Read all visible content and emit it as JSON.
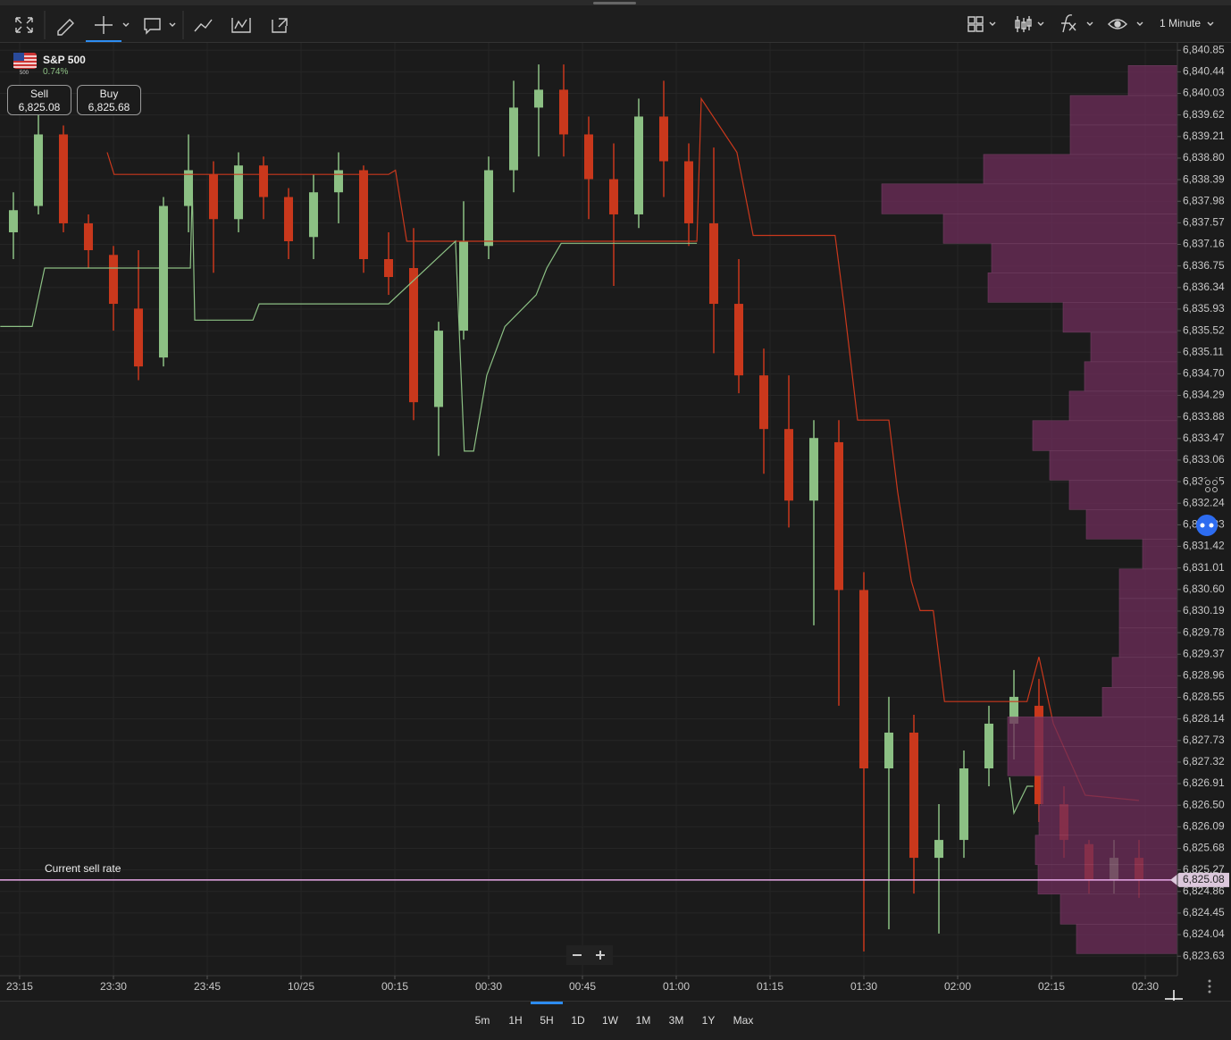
{
  "toolbar": {
    "timeframe": "1 Minute"
  },
  "instrument": {
    "name": "S&P 500",
    "flag_text": "500",
    "change": "0.74%",
    "sell_label": "Sell",
    "sell_price": "6,825.08",
    "buy_label": "Buy",
    "buy_price": "6,825.68"
  },
  "chart_data": {
    "type": "candlestick",
    "up_color": "#8cc084",
    "down_color": "#c9381c",
    "grid": true,
    "xlim": [
      -3.14,
      185.14
    ],
    "ylim": [
      6823.26,
      6840.99
    ],
    "xticks": [
      {
        "value": 0,
        "label": "23:15"
      },
      {
        "value": 15,
        "label": "23:30"
      },
      {
        "value": 30,
        "label": "23:45"
      },
      {
        "value": 45,
        "label": "10/25"
      },
      {
        "value": 60,
        "label": "00:15"
      },
      {
        "value": 75,
        "label": "00:30"
      },
      {
        "value": 90,
        "label": "00:45"
      },
      {
        "value": 105,
        "label": "01:00"
      },
      {
        "value": 120,
        "label": "01:15"
      },
      {
        "value": 135,
        "label": "01:30"
      },
      {
        "value": 150,
        "label": "02:00"
      },
      {
        "value": 165,
        "label": "02:15"
      },
      {
        "value": 180,
        "label": "02:30"
      }
    ],
    "yticks": [
      {
        "value": 6840.85,
        "label": "6,840.85"
      },
      {
        "value": 6840.44,
        "label": "6,840.44"
      },
      {
        "value": 6840.03,
        "label": "6,840.03"
      },
      {
        "value": 6839.62,
        "label": "6,839.62"
      },
      {
        "value": 6839.21,
        "label": "6,839.21"
      },
      {
        "value": 6838.8,
        "label": "6,838.80"
      },
      {
        "value": 6838.39,
        "label": "6,838.39"
      },
      {
        "value": 6837.98,
        "label": "6,837.98"
      },
      {
        "value": 6837.57,
        "label": "6,837.57"
      },
      {
        "value": 6837.16,
        "label": "6,837.16"
      },
      {
        "value": 6836.75,
        "label": "6,836.75"
      },
      {
        "value": 6836.34,
        "label": "6,836.34"
      },
      {
        "value": 6835.93,
        "label": "6,835.93"
      },
      {
        "value": 6835.52,
        "label": "6,835.52"
      },
      {
        "value": 6835.11,
        "label": "6,835.11"
      },
      {
        "value": 6834.7,
        "label": "6,834.70"
      },
      {
        "value": 6834.29,
        "label": "6,834.29"
      },
      {
        "value": 6833.88,
        "label": "6,833.88"
      },
      {
        "value": 6833.47,
        "label": "6,833.47"
      },
      {
        "value": 6833.06,
        "label": "6,833.06"
      },
      {
        "value": 6832.65,
        "label": "6,832.65"
      },
      {
        "value": 6832.24,
        "label": "6,832.24"
      },
      {
        "value": 6831.83,
        "label": "6,831.83"
      },
      {
        "value": 6831.42,
        "label": "6,831.42"
      },
      {
        "value": 6831.01,
        "label": "6,831.01"
      },
      {
        "value": 6830.6,
        "label": "6,830.60"
      },
      {
        "value": 6830.19,
        "label": "6,830.19"
      },
      {
        "value": 6829.78,
        "label": "6,829.78"
      },
      {
        "value": 6829.37,
        "label": "6,829.37"
      },
      {
        "value": 6828.96,
        "label": "6,828.96"
      },
      {
        "value": 6828.55,
        "label": "6,828.55"
      },
      {
        "value": 6828.14,
        "label": "6,828.14"
      },
      {
        "value": 6827.73,
        "label": "6,827.73"
      },
      {
        "value": 6827.32,
        "label": "6,827.32"
      },
      {
        "value": 6826.91,
        "label": "6,826.91"
      },
      {
        "value": 6826.5,
        "label": "6,826.50"
      },
      {
        "value": 6826.09,
        "label": "6,826.09"
      },
      {
        "value": 6825.68,
        "label": "6,825.68"
      },
      {
        "value": 6825.27,
        "label": "6,825.27"
      },
      {
        "value": 6824.86,
        "label": "6,824.86"
      },
      {
        "value": 6824.45,
        "label": "6,824.45"
      },
      {
        "value": 6824.04,
        "label": "6,824.04"
      },
      {
        "value": 6823.63,
        "label": "6,823.63"
      }
    ],
    "x": [
      -1,
      3,
      7,
      11,
      15,
      19,
      23,
      27,
      31,
      35,
      39,
      43,
      47,
      51,
      55,
      59,
      63,
      67,
      71,
      75,
      79,
      83,
      87,
      91,
      95,
      99,
      103,
      107,
      111,
      115,
      119,
      123,
      127,
      131,
      135,
      139,
      143,
      147,
      151,
      155,
      159,
      163,
      167,
      171,
      175,
      179
    ],
    "open": [
      6837.39,
      6837.89,
      6839.25,
      6837.56,
      6836.96,
      6835.94,
      6835.01,
      6837.89,
      6838.49,
      6837.64,
      6838.66,
      6838.06,
      6837.3,
      6838.15,
      6838.57,
      6836.88,
      6836.71,
      6834.07,
      6835.52,
      6837.13,
      6838.57,
      6839.76,
      6840.1,
      6839.25,
      6838.4,
      6837.73,
      6839.59,
      6838.74,
      6837.56,
      6836.03,
      6834.67,
      6833.65,
      6832.29,
      6833.4,
      6830.59,
      6827.2,
      6827.88,
      6825.5,
      6825.84,
      6827.2,
      6828.05,
      6828.39,
      6826.52,
      6825.76,
      6825.08,
      6825.5
    ],
    "high": [
      6838.15,
      6839.68,
      6839.42,
      6837.73,
      6837.13,
      6837.05,
      6838.06,
      6839.25,
      6838.74,
      6838.91,
      6838.83,
      6838.23,
      6838.49,
      6838.91,
      6838.66,
      6837.39,
      6837.47,
      6835.69,
      6837.98,
      6838.83,
      6840.27,
      6840.58,
      6840.58,
      6839.59,
      6839.08,
      6839.93,
      6840.27,
      6839.08,
      6839.0,
      6836.88,
      6835.18,
      6834.67,
      6833.82,
      6833.82,
      6830.93,
      6828.56,
      6828.22,
      6826.52,
      6827.54,
      6828.39,
      6829.07,
      6828.9,
      6826.86,
      6825.84,
      6825.84,
      6825.84
    ],
    "low": [
      6836.88,
      6837.73,
      6837.39,
      6836.71,
      6835.52,
      6834.58,
      6834.84,
      6837.39,
      6836.62,
      6837.39,
      6837.64,
      6836.88,
      6836.88,
      6837.56,
      6836.62,
      6836.2,
      6833.82,
      6833.14,
      6835.35,
      6836.88,
      6838.15,
      6838.83,
      6838.83,
      6837.64,
      6836.37,
      6837.47,
      6838.06,
      6837.13,
      6835.09,
      6834.33,
      6832.8,
      6831.78,
      6829.92,
      6828.39,
      6823.72,
      6824.14,
      6824.82,
      6824.06,
      6825.5,
      6826.86,
      6827.37,
      6826.18,
      6825.5,
      6824.82,
      6824.82,
      6824.74
    ],
    "close": [
      6837.81,
      6839.25,
      6837.56,
      6837.05,
      6836.03,
      6834.84,
      6837.89,
      6838.57,
      6837.64,
      6838.66,
      6838.06,
      6837.22,
      6838.15,
      6838.57,
      6836.88,
      6836.54,
      6834.16,
      6835.52,
      6837.22,
      6838.57,
      6839.76,
      6840.1,
      6839.25,
      6838.4,
      6837.73,
      6839.59,
      6838.74,
      6837.56,
      6836.03,
      6834.67,
      6833.65,
      6832.29,
      6833.48,
      6830.59,
      6827.2,
      6827.88,
      6825.5,
      6825.84,
      6827.2,
      6828.05,
      6828.56,
      6826.52,
      6825.84,
      6825.08,
      6825.5,
      6825.08
    ],
    "lines": [
      {
        "color": "#c9381c",
        "x": [
          14.0,
          15.1,
          59.0,
          60.1,
          61.9,
          108.3,
          109.0,
          114.7,
          117.3,
          130.4,
          131.9,
          134.0,
          139.0,
          140.4,
          142.6,
          144.0,
          146.1,
          147.9,
          161.1,
          163.0,
          165.3,
          170.4,
          179.0
        ],
        "values": [
          6838.91,
          6838.49,
          6838.49,
          6838.57,
          6837.22,
          6837.22,
          6839.93,
          6838.91,
          6837.33,
          6837.33,
          6835.94,
          6833.82,
          6833.82,
          6832.46,
          6830.76,
          6830.2,
          6830.2,
          6828.47,
          6828.47,
          6829.32,
          6828.05,
          6826.69,
          6826.59
        ]
      },
      {
        "color": "#8cc084",
        "x": [
          -3.1,
          2.0,
          4.0,
          27.3,
          27.6,
          28.0,
          37.3,
          38.3,
          59.0,
          69.7,
          71.1,
          72.6,
          74.7,
          77.6,
          82.6,
          84.3,
          86.6,
          108.3,
          null,
          158.3,
          159.0,
          161.1,
          162.1
        ],
        "values": [
          6835.6,
          6835.6,
          6836.71,
          6836.71,
          6838.23,
          6835.72,
          6835.72,
          6836.03,
          6836.03,
          6837.22,
          6833.23,
          6833.23,
          6834.67,
          6835.6,
          6836.2,
          6836.71,
          6837.18,
          6837.18,
          null,
          6827.03,
          6826.35,
          6826.86,
          6826.86
        ]
      }
    ],
    "volume_profile": {
      "color": "#6e2d5a",
      "bins": [
        6823.68,
        6824.24,
        6824.81,
        6825.37,
        6825.93,
        6826.49,
        6827.06,
        6827.62,
        6828.18,
        6828.74,
        6829.31,
        6829.87,
        6830.43,
        6830.99,
        6831.56,
        6832.12,
        6832.68,
        6833.24,
        6833.81,
        6834.37,
        6834.93,
        6835.49,
        6836.06,
        6836.62,
        6837.18,
        6837.74,
        6838.31,
        6838.87,
        6839.43,
        6839.99,
        6840.56
      ],
      "values": [
        113,
        131,
        156,
        159,
        155,
        153,
        190,
        190,
        84,
        73,
        65,
        65,
        65,
        39,
        102,
        121,
        143,
        162,
        121,
        104,
        97,
        128,
        212,
        208,
        262,
        331,
        217,
        120,
        120,
        55
      ]
    },
    "current_rate": {
      "label": "Current sell rate",
      "value": 6825.08,
      "value_label": "6,825.08",
      "color": "#e8a8e8"
    }
  },
  "ranges": {
    "options": [
      "5m",
      "1H",
      "5H",
      "1D",
      "1W",
      "1M",
      "3M",
      "1Y",
      "Max"
    ],
    "selected_index": 2
  }
}
